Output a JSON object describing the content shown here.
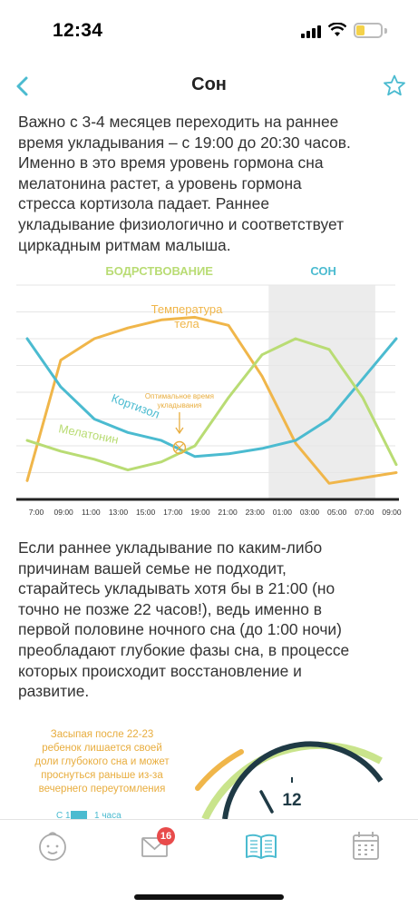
{
  "status": {
    "time": "12:34",
    "battery_fraction": 0.35
  },
  "nav": {
    "title": "Сон",
    "back_icon": "chevron-left-icon",
    "favorite_icon": "star-icon"
  },
  "paragraphs": {
    "p1": [
      "Важно с 3-4 месяцев переходить на раннее",
      "время укладывания – с 19:00 до 20:30 часов.",
      "Именно в это время уровень гормона сна",
      "мелатонина растет, а уровень гормона",
      "стресса кортизола падает. Раннее",
      "укладывание физиологично и соответствует",
      "циркадным ритмам малыша."
    ],
    "p2": [
      "Если раннее укладывание по каким-либо",
      "причинам вашей семье не подходит,",
      "старайтесь укладывать хотя бы в 21:00 (но",
      "точно не позже 22 часов!), ведь именно в",
      "первой половине ночного сна (до 1:00 ночи)",
      "преобладают глубокие фазы сна, в процессе",
      "которых происходит восстановление и",
      "развитие."
    ]
  },
  "chart_data": {
    "type": "line",
    "zones": {
      "wake": "БОДРСТВОВАНИЕ",
      "sleep": "СОН"
    },
    "x_ticks": [
      "7:00",
      "09:00",
      "11:00",
      "13:00",
      "15:00",
      "17:00",
      "19:00",
      "21:00",
      "23:00",
      "01:00",
      "03:00",
      "05:00",
      "07:00",
      "09:00"
    ],
    "sleep_range": [
      8.5,
      12.4
    ],
    "series": [
      {
        "name": "Температура тела",
        "label_lines": [
          "Температура",
          "тела"
        ],
        "color": "#f0b64a",
        "values": [
          0.7,
          5.2,
          6.0,
          6.4,
          6.7,
          6.8,
          6.5,
          4.6,
          2.1,
          0.6,
          0.8,
          1.0
        ]
      },
      {
        "name": "Кортизол",
        "color": "#4bbbd0",
        "values": [
          6.0,
          4.2,
          3.0,
          2.5,
          2.2,
          1.6,
          1.7,
          1.9,
          2.2,
          3.0,
          4.5,
          6.0
        ]
      },
      {
        "name": "Мелатонин",
        "color": "#b9dc74",
        "values": [
          2.2,
          1.8,
          1.5,
          1.1,
          1.4,
          2.0,
          3.8,
          5.4,
          6.0,
          5.6,
          3.8,
          1.3
        ]
      }
    ],
    "annotation": {
      "lines": [
        "Оптимальное время",
        "укладывания"
      ],
      "color": "#e8ad3e",
      "x": 6.0,
      "y": 1.8
    },
    "ylim": [
      0,
      8
    ]
  },
  "illustration": {
    "text_lines": [
      "Засыпая после 22-23",
      "ребенок лишается своей",
      "доли глубокого сна и может",
      "проснуться раньше из-за",
      "вечернего переутомления"
    ],
    "clock_label": "12",
    "legend_left": "С 1",
    "legend_right": "1 часа"
  },
  "tabs": [
    {
      "name": "child",
      "icon": "baby-icon"
    },
    {
      "name": "messages",
      "icon": "envelope-icon",
      "badge": "16"
    },
    {
      "name": "articles",
      "icon": "book-icon",
      "active": true
    },
    {
      "name": "calendar",
      "icon": "calendar-icon"
    }
  ]
}
